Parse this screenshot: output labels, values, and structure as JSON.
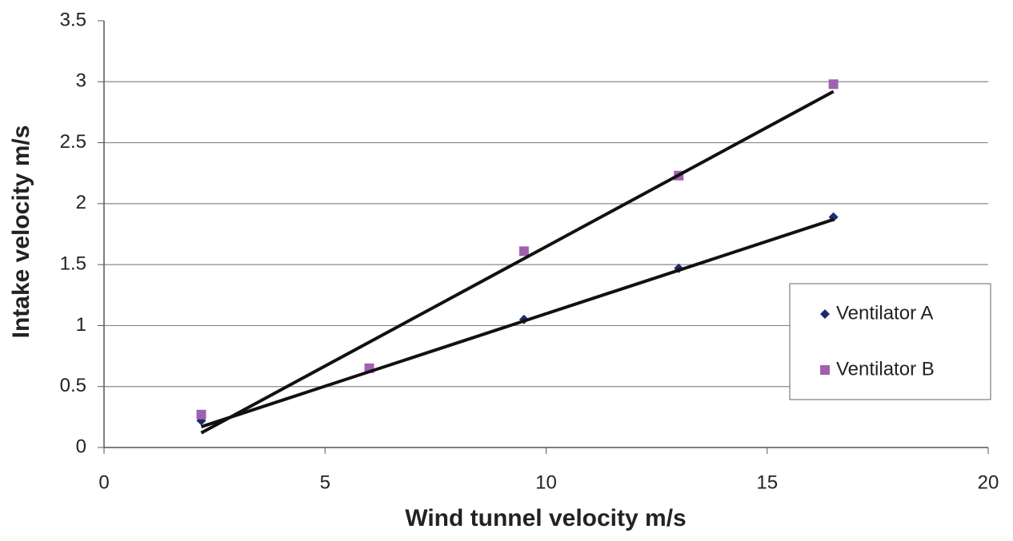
{
  "chart_data": {
    "type": "scatter",
    "x_label": "Wind tunnel velocity m/s",
    "y_label": "Intake velocity m/s",
    "xlim": [
      0,
      20
    ],
    "xticks": [
      0,
      5,
      10,
      15,
      20
    ],
    "ylim": [
      0,
      3.5
    ],
    "yticks": [
      0,
      0.5,
      1,
      1.5,
      2,
      2.5,
      3,
      3.5
    ],
    "grid": true,
    "legend": "right",
    "series": [
      {
        "name": "Ventilator A",
        "color": "#1f2a6b",
        "marker": "diamond",
        "x": [
          2.2,
          6,
          9.5,
          13,
          16.5
        ],
        "values": [
          0.22,
          0.65,
          1.05,
          1.47,
          1.89
        ]
      },
      {
        "name": "Ventilator B",
        "color": "#a060b0",
        "marker": "square",
        "x": [
          2.2,
          6,
          9.5,
          13,
          16.5
        ],
        "values": [
          0.27,
          0.65,
          1.61,
          2.23,
          2.98
        ]
      }
    ],
    "trendlines": [
      {
        "color": "#111111",
        "x": [
          2.2,
          16.5
        ],
        "values": [
          0.17,
          1.87
        ]
      },
      {
        "color": "#111111",
        "x": [
          2.2,
          16.5
        ],
        "values": [
          0.12,
          2.92
        ]
      }
    ]
  }
}
